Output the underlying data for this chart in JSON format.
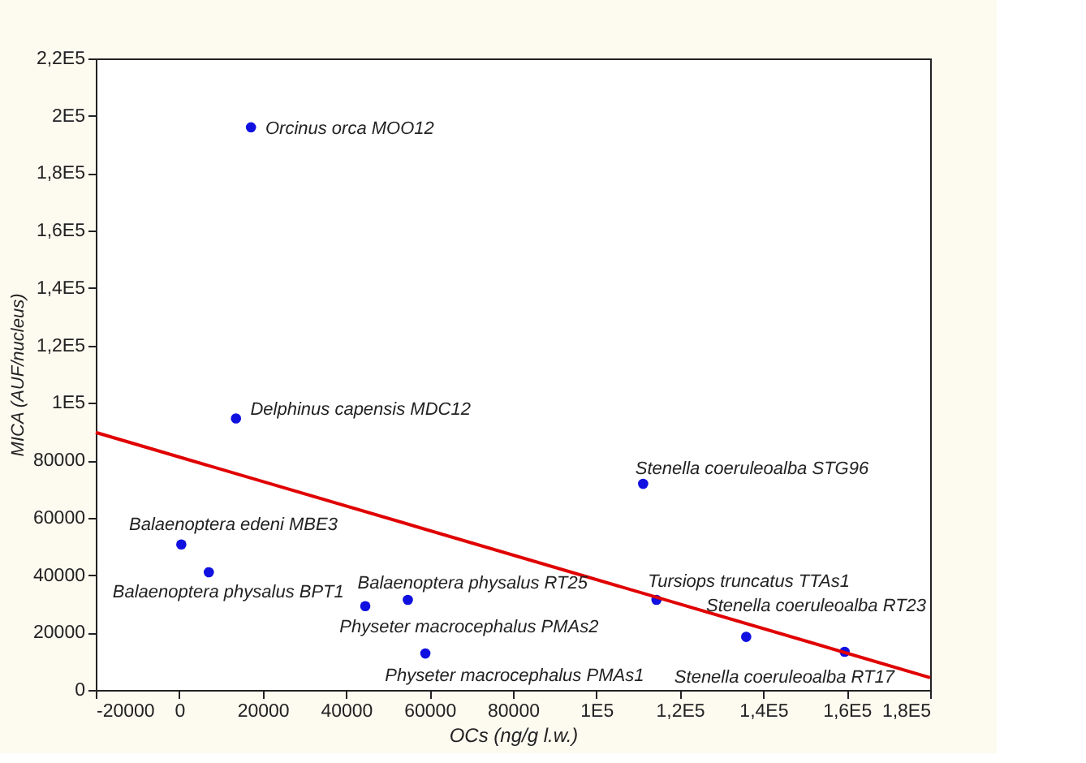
{
  "chart_data": {
    "type": "scatter",
    "xlabel": "OCs (ng/g l.w.)",
    "ylabel": "MICA (AUF/nucleus)",
    "xlim": [
      -20000,
      180000
    ],
    "ylim": [
      0,
      220000
    ],
    "xticks": [
      -20000,
      0,
      20000,
      40000,
      60000,
      80000,
      {
        "value": 100000,
        "label": "1E5"
      },
      {
        "value": 120000,
        "label": "1,2E5"
      },
      {
        "value": 140000,
        "label": "1,4E5"
      },
      {
        "value": 160000,
        "label": "1,6E5"
      },
      {
        "value": 180000,
        "label": "1,8E5"
      }
    ],
    "yticks": [
      0,
      20000,
      40000,
      60000,
      80000,
      {
        "value": 100000,
        "label": "1E5"
      },
      {
        "value": 120000,
        "label": "1,2E5"
      },
      {
        "value": 140000,
        "label": "1,4E5"
      },
      {
        "value": 160000,
        "label": "1,6E5"
      },
      {
        "value": 180000,
        "label": "1,8E5"
      },
      {
        "value": 200000,
        "label": "2E5"
      },
      {
        "value": 220000,
        "label": "2,2E5"
      }
    ],
    "grid": false,
    "marker": "circle",
    "series": [
      {
        "color": "#1010e0",
        "x": [
          17200,
          13600,
          500,
          7100,
          54800,
          44600,
          59000,
          111200,
          114400,
          135900,
          159500
        ],
        "values": [
          196000,
          94600,
          50700,
          41000,
          31400,
          29200,
          12700,
          71800,
          31400,
          18500,
          13300
        ]
      },
      {
        "type": "line",
        "color": "#e00000",
        "line_style": "solid",
        "marker": "none",
        "x": [
          -20000,
          180000
        ],
        "values": [
          89700,
          4300
        ]
      }
    ],
    "annotations": [
      {
        "text": "Orcinus orca MOO12",
        "x": 17150,
        "y": 196000
      },
      {
        "text": "Delphinus capensis MDC12",
        "x": 13550,
        "y": 94600
      },
      {
        "text": "Balaenoptera edeni MBE3",
        "x": 520,
        "y": 50700
      },
      {
        "text": "Balaenoptera physalus BPT1",
        "x": 7100,
        "y": 40850
      },
      {
        "text": "Balaenoptera physalus RT25",
        "x": 54750,
        "y": 31400
      },
      {
        "text": "Physeter macrocephalus PMAs2",
        "x": 44560,
        "y": 29240
      },
      {
        "text": "Physeter macrocephalus PMAs1",
        "x": 58950,
        "y": 12700
      },
      {
        "text": "Stenella coeruleoalba STG96",
        "x": 111220,
        "y": 71800
      },
      {
        "text": "Tursiops truncatus TTAs1",
        "x": 114370,
        "y": 31400
      },
      {
        "text": "Stenella coeruleoalba RT23",
        "x": 135940,
        "y": 18500
      },
      {
        "text": "Stenella coeruleoalba RT17",
        "x": 159460,
        "y": 13300
      }
    ]
  }
}
